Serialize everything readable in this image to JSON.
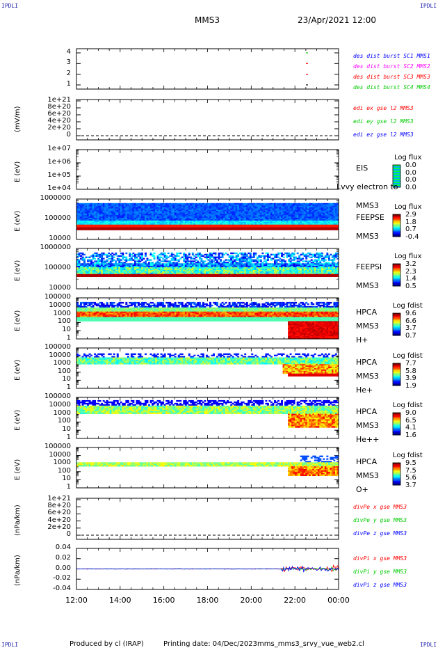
{
  "corners": {
    "tl": "IPDLI",
    "tr": "IPDLI",
    "bl": "IPDLI",
    "br": "IPDLI"
  },
  "header": {
    "spacecraft": "MMS3",
    "datetime": "23/Apr/2021 12:00"
  },
  "xaxis": {
    "ticks": [
      "12:00",
      "14:00",
      "16:00",
      "18:00",
      "20:00",
      "22:00",
      "00:00"
    ]
  },
  "footer": {
    "produced": "Produced by cl (IRAP)",
    "printing": "Printing date: 04/Dec/2023",
    "file": "mms_mms3_srvy_vue_web2.cl"
  },
  "colors": {
    "mms1": "#0000ff",
    "mms2": "#ff00ff",
    "mms3": "#ff0000",
    "mms4": "#00cc00",
    "green": "#00cc00",
    "red": "#ff0000",
    "blue": "#0000ff"
  },
  "chart_data": [
    {
      "type": "scatter",
      "name": "des dist burst",
      "yticks": [
        "4",
        "3",
        "2",
        "1"
      ],
      "legend": [
        "des dist burst SC1 MMS1",
        "des dist burst SC2 MMS2",
        "des dist burst SC3 MMS3",
        "des dist burst SC4 MMS4"
      ]
    },
    {
      "type": "line",
      "ylabel": "(mV/m)",
      "yticks": [
        "1e+21",
        "8e+20",
        "6e+20",
        "4e+20",
        "2e+20",
        "0"
      ],
      "legend": [
        "edi ex gse l2 MMS3",
        "edi ey gse l2 MMS3",
        "edi ez gse l2 MMS3"
      ]
    },
    {
      "type": "heatmap",
      "ylabel": "E (eV)",
      "yticks": [
        "1e+07",
        "1e+06",
        "1e+05",
        "1e+04"
      ],
      "inst": [
        "EIS",
        "Lvvy electron to",
        "MMS3"
      ],
      "cb_title": "Log flux",
      "cb_vals": [
        "0.0",
        "0.0",
        "0.0",
        "0.0"
      ]
    },
    {
      "type": "heatmap",
      "ylabel": "E (eV)",
      "yticks": [
        "1000000",
        "100000",
        "10000"
      ],
      "inst": [
        "FEEPSE",
        "MMS3"
      ],
      "cb_title": "Log flux",
      "cb_vals": [
        "2.9",
        "1.8",
        "0.7",
        "-0.4"
      ]
    },
    {
      "type": "heatmap",
      "ylabel": "E (eV)",
      "yticks": [
        "1000000",
        "100000",
        "10000"
      ],
      "inst": [
        "FEEPSI",
        "MMS3"
      ],
      "cb_title": "Log flux",
      "cb_vals": [
        "3.2",
        "2.3",
        "1.4",
        "0.5"
      ]
    },
    {
      "type": "heatmap",
      "ylabel": "E (eV)",
      "yticks": [
        "100000",
        "10000",
        "1000",
        "100",
        "10",
        "1"
      ],
      "inst": [
        "HPCA",
        "MMS3",
        "H+"
      ],
      "cb_title": "Log fdist",
      "cb_vals": [
        "9.6",
        "6.6",
        "3.7",
        "0.7"
      ]
    },
    {
      "type": "heatmap",
      "ylabel": "E (eV)",
      "yticks": [
        "100000",
        "10000",
        "1000",
        "100",
        "10",
        "1"
      ],
      "inst": [
        "HPCA",
        "MMS3",
        "He+"
      ],
      "cb_title": "Log fdist",
      "cb_vals": [
        "7.7",
        "5.8",
        "3.9",
        "1.9"
      ]
    },
    {
      "type": "heatmap",
      "ylabel": "E (eV)",
      "yticks": [
        "100000",
        "10000",
        "1000",
        "100",
        "10",
        "1"
      ],
      "inst": [
        "HPCA",
        "MMS3",
        "He++"
      ],
      "cb_title": "Log fdist",
      "cb_vals": [
        "9.0",
        "6.5",
        "4.1",
        "1.6"
      ]
    },
    {
      "type": "heatmap",
      "ylabel": "E (eV)",
      "yticks": [
        "100000",
        "10000",
        "1000",
        "100",
        "10",
        "1"
      ],
      "inst": [
        "HPCA",
        "MMS3",
        "O+"
      ],
      "cb_title": "Log fdist",
      "cb_vals": [
        "9.5",
        "7.5",
        "5.6",
        "3.7"
      ]
    },
    {
      "type": "line",
      "ylabel": "(nPa/km)",
      "yticks": [
        "1e+21",
        "8e+20",
        "6e+20",
        "4e+20",
        "2e+20",
        "0"
      ],
      "legend": [
        "divPe x gse MMS3",
        "divPe y gse MMS3",
        "divPe z gse MMS3"
      ]
    },
    {
      "type": "line",
      "ylabel": "(nPa/km)",
      "yticks": [
        "0.04",
        "0.02",
        "0.00",
        "-0.02",
        "-0.04"
      ],
      "legend": [
        "divPi x gse MMS3",
        "divPi y gse MMS3",
        "divPi z gse MMS3"
      ]
    }
  ]
}
